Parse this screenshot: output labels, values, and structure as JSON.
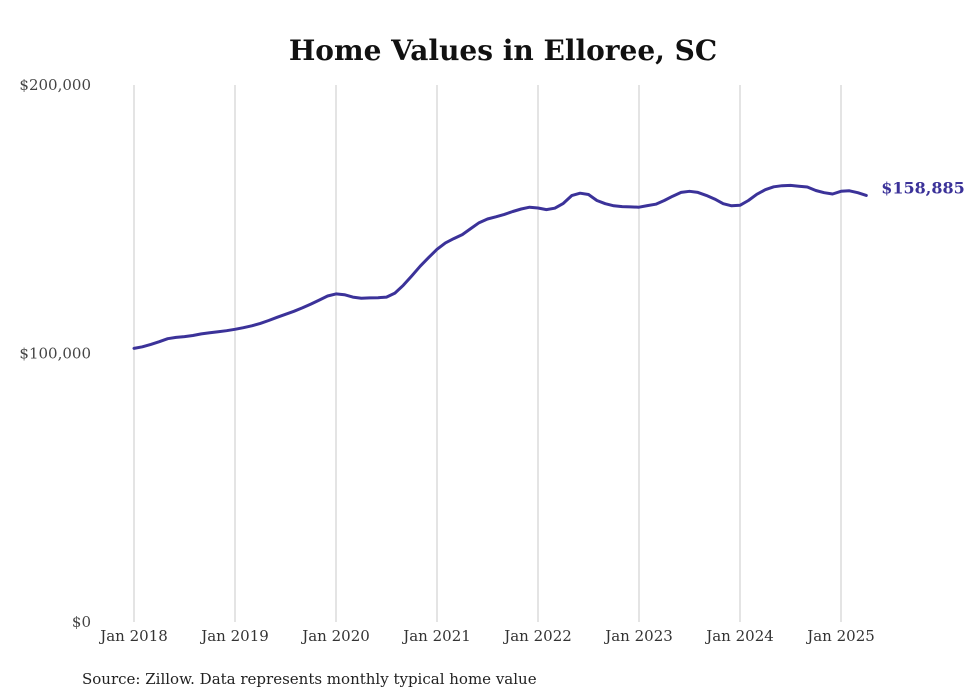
{
  "chart_data": {
    "type": "line",
    "title": "Home Values in Elloree, SC",
    "source": "Source: Zillow. Data represents monthly typical home value",
    "ylim": [
      0,
      200000
    ],
    "y_ticks": [
      {
        "value": 200000,
        "label": "$200,000"
      },
      {
        "value": 100000,
        "label": "$100,000"
      },
      {
        "value": 0,
        "label": "$0"
      }
    ],
    "x_ticks": [
      {
        "value": "2018-01",
        "label": "Jan 2018"
      },
      {
        "value": "2019-01",
        "label": "Jan 2019"
      },
      {
        "value": "2020-01",
        "label": "Jan 2020"
      },
      {
        "value": "2021-01",
        "label": "Jan 2021"
      },
      {
        "value": "2022-01",
        "label": "Jan 2022"
      },
      {
        "value": "2023-01",
        "label": "Jan 2023"
      },
      {
        "value": "2024-01",
        "label": "Jan 2024"
      },
      {
        "value": "2025-01",
        "label": "Jan 2025"
      }
    ],
    "x_range": [
      "2018-01",
      "2025-04"
    ],
    "grid": "vertical",
    "series_color": "#3b3299",
    "end_label": "$158,885",
    "series": [
      {
        "x": [
          "2018-01",
          "2018-02",
          "2018-03",
          "2018-04",
          "2018-05",
          "2018-06",
          "2018-07",
          "2018-08",
          "2018-09",
          "2018-10",
          "2018-11",
          "2018-12",
          "2019-01",
          "2019-02",
          "2019-03",
          "2019-04",
          "2019-05",
          "2019-06",
          "2019-07",
          "2019-08",
          "2019-09",
          "2019-10",
          "2019-11",
          "2019-12",
          "2020-01",
          "2020-02",
          "2020-03",
          "2020-04",
          "2020-05",
          "2020-06",
          "2020-07",
          "2020-08",
          "2020-09",
          "2020-10",
          "2020-11",
          "2020-12",
          "2021-01",
          "2021-02",
          "2021-03",
          "2021-04",
          "2021-05",
          "2021-06",
          "2021-07",
          "2021-08",
          "2021-09",
          "2021-10",
          "2021-11",
          "2021-12",
          "2022-01",
          "2022-02",
          "2022-03",
          "2022-04",
          "2022-05",
          "2022-06",
          "2022-07",
          "2022-08",
          "2022-09",
          "2022-10",
          "2022-11",
          "2022-12",
          "2023-01",
          "2023-02",
          "2023-03",
          "2023-04",
          "2023-05",
          "2023-06",
          "2023-07",
          "2023-08",
          "2023-09",
          "2023-10",
          "2023-11",
          "2023-12",
          "2024-01",
          "2024-02",
          "2024-03",
          "2024-04",
          "2024-05",
          "2024-06",
          "2024-07",
          "2024-08",
          "2024-09",
          "2024-10",
          "2024-11",
          "2024-12",
          "2025-01",
          "2025-02",
          "2025-03",
          "2025-04"
        ],
        "values": [
          101900,
          102500,
          103400,
          104400,
          105500,
          106000,
          106300,
          106700,
          107300,
          107700,
          108100,
          108500,
          109000,
          109600,
          110300,
          111200,
          112300,
          113500,
          114600,
          115700,
          117000,
          118400,
          119900,
          121400,
          122200,
          121900,
          121000,
          120600,
          120700,
          120800,
          121000,
          122500,
          125400,
          128900,
          132500,
          135700,
          138800,
          141200,
          142800,
          144300,
          146500,
          148700,
          150100,
          150900,
          151800,
          152900,
          153800,
          154500,
          154200,
          153600,
          154100,
          155900,
          158800,
          159700,
          159200,
          157000,
          155800,
          155000,
          154700,
          154600,
          154500,
          155100,
          155600,
          157000,
          158600,
          160000,
          160400,
          160000,
          158900,
          157500,
          155800,
          155000,
          155200,
          157000,
          159300,
          161000,
          162100,
          162500,
          162600,
          162300,
          162000,
          160700,
          159900,
          159400,
          160400,
          160600,
          159900,
          158885
        ]
      }
    ]
  }
}
